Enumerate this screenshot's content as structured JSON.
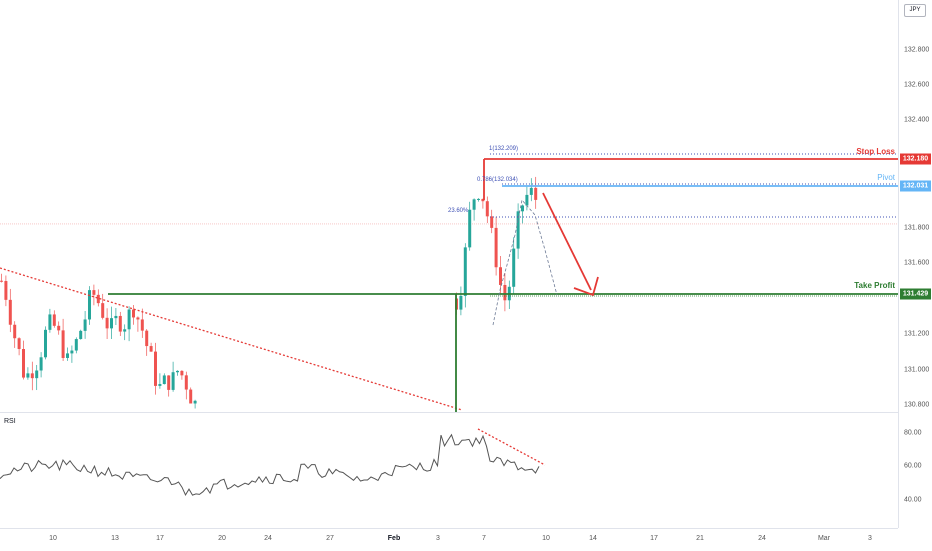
{
  "symbol_currency": "JPY",
  "colors": {
    "bull": "#26a69a",
    "bear": "#ef5350",
    "stop_loss": "#e53935",
    "pivot": "#64b5f6",
    "take_profit": "#2e7d32",
    "fib": "#3f51b5",
    "trendline": "#e53935",
    "rsi": "#555555"
  },
  "price_axis": {
    "ticks": [
      "132.800",
      "132.600",
      "132.400",
      "131.800",
      "131.600",
      "131.200",
      "131.000",
      "130.800"
    ],
    "rsi_ticks": [
      "80.00",
      "60.00",
      "40.00"
    ]
  },
  "levels": {
    "stop_loss": {
      "label": "Stop Loss",
      "price": "132.180"
    },
    "pivot": {
      "label": "Pivot",
      "price": "132.031"
    },
    "take_profit": {
      "label": "Take Profit",
      "price": "131.429"
    }
  },
  "fib_labels": {
    "level_1": "1(132.209)",
    "level_0786": "0.786(132.034)",
    "level_236": "23.60%"
  },
  "rsi": {
    "label": "RSI"
  },
  "time_axis": {
    "labels": [
      "10",
      "13",
      "17",
      "20",
      "24",
      "27",
      "Feb",
      "3",
      "7",
      "10",
      "14",
      "17",
      "21",
      "24",
      "Mar",
      "3"
    ]
  }
}
